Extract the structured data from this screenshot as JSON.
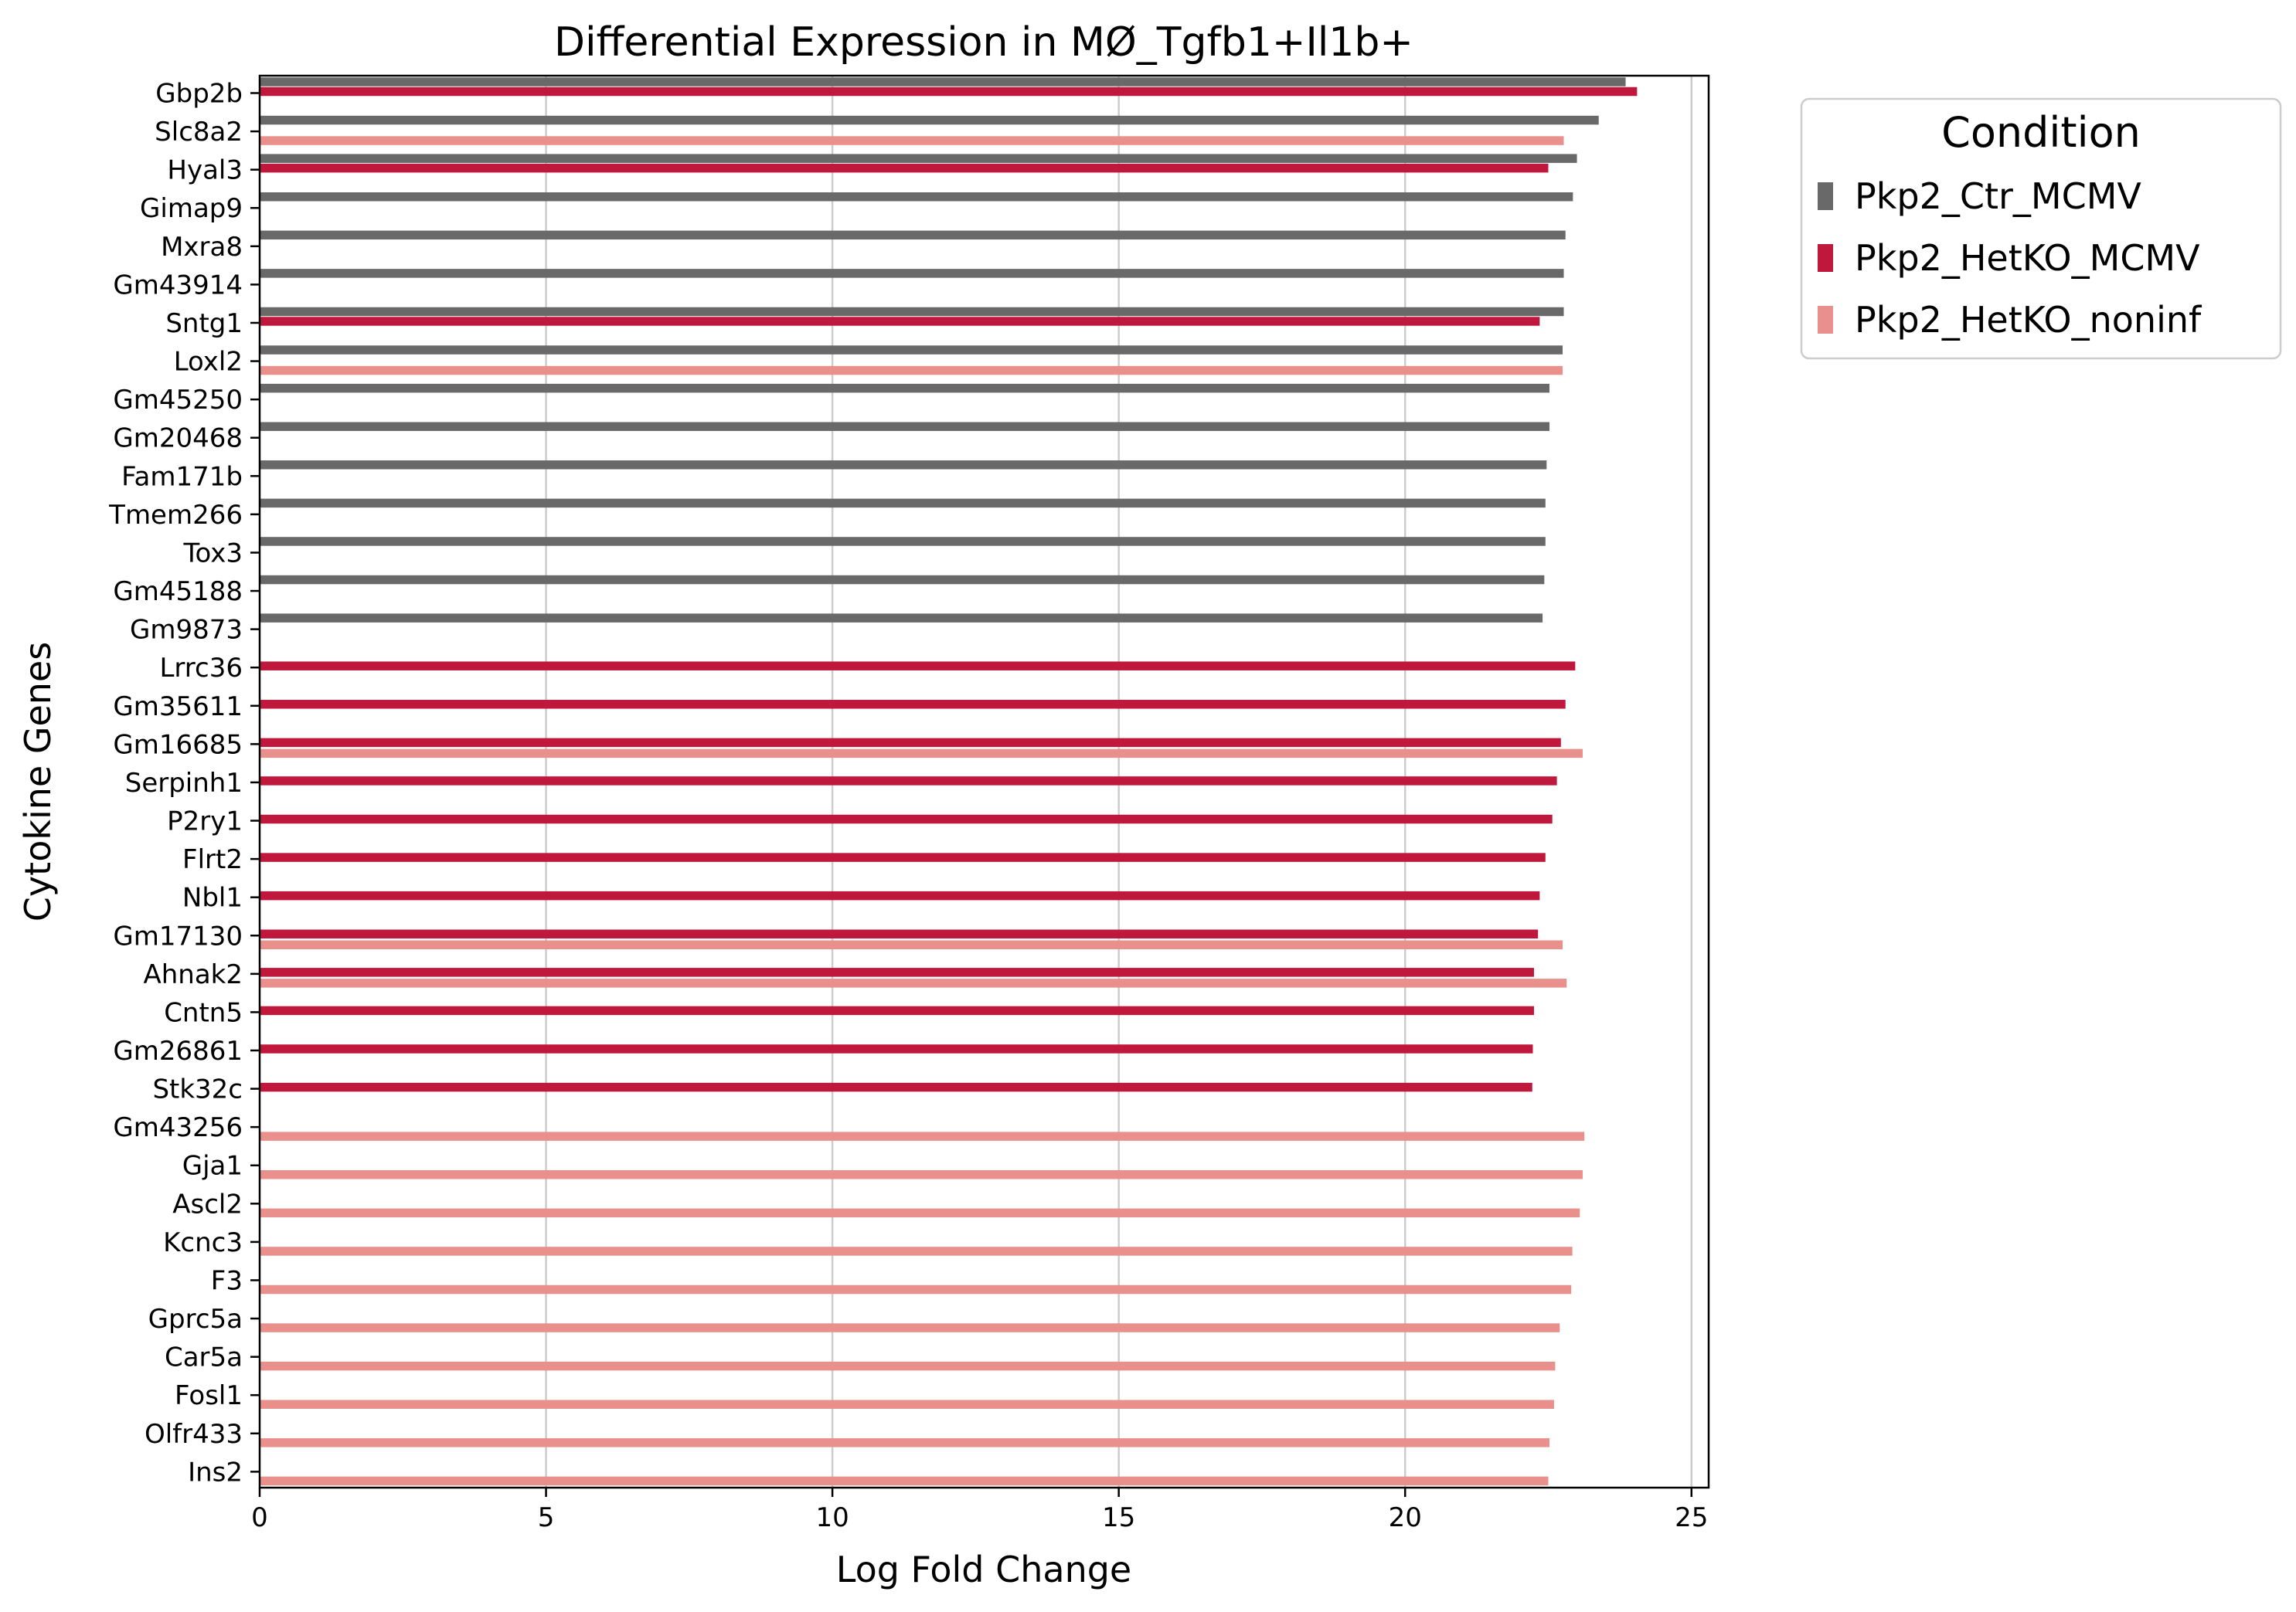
{
  "chart_data": {
    "type": "bar",
    "orientation": "horizontal",
    "title": "Differential Expression in MØ_Tgfb1+Il1b+",
    "xlabel": "Log Fold Change",
    "ylabel": "Cytokine Genes",
    "xlim": [
      0,
      25.3
    ],
    "xticks": [
      0,
      5,
      10,
      15,
      20,
      25
    ],
    "grid": "vertical",
    "legend": {
      "title": "Condition",
      "placement": "outside-top-right"
    },
    "categories": [
      "Gbp2b",
      "Slc8a2",
      "Hyal3",
      "Gimap9",
      "Mxra8",
      "Gm43914",
      "Sntg1",
      "Loxl2",
      "Gm45250",
      "Gm20468",
      "Fam171b",
      "Tmem266",
      "Tox3",
      "Gm45188",
      "Gm9873",
      "Lrrc36",
      "Gm35611",
      "Gm16685",
      "Serpinh1",
      "P2ry1",
      "Flrt2",
      "Nbl1",
      "Gm17130",
      "Ahnak2",
      "Cntn5",
      "Gm26861",
      "Stk32c",
      "Gm43256",
      "Gja1",
      "Ascl2",
      "Kcnc3",
      "F3",
      "Gprc5a",
      "Car5a",
      "Fosl1",
      "Olfr433",
      "Ins2"
    ],
    "series": [
      {
        "name": "Pkp2_Ctr_MCMV",
        "color": "#696969",
        "values": [
          23.85,
          23.38,
          23.0,
          22.93,
          22.8,
          22.77,
          22.77,
          22.75,
          22.52,
          22.52,
          22.47,
          22.45,
          22.45,
          22.43,
          22.4,
          null,
          null,
          null,
          null,
          null,
          null,
          null,
          null,
          null,
          null,
          null,
          null,
          null,
          null,
          null,
          null,
          null,
          null,
          null,
          null,
          null,
          null
        ]
      },
      {
        "name": "Pkp2_HetKO_MCMV",
        "color": "#c0183c",
        "values": [
          24.05,
          null,
          22.5,
          null,
          null,
          null,
          22.35,
          null,
          null,
          null,
          null,
          null,
          null,
          null,
          null,
          22.97,
          22.8,
          22.72,
          22.65,
          22.57,
          22.45,
          22.35,
          22.32,
          22.25,
          22.25,
          22.23,
          22.22,
          null,
          null,
          null,
          null,
          null,
          null,
          null,
          null,
          null,
          null
        ]
      },
      {
        "name": "Pkp2_HetKO_noninf",
        "color": "#e9908c",
        "values": [
          null,
          22.77,
          null,
          null,
          null,
          null,
          null,
          22.75,
          null,
          null,
          null,
          null,
          null,
          null,
          null,
          null,
          null,
          23.1,
          null,
          null,
          null,
          null,
          22.75,
          22.82,
          null,
          null,
          null,
          23.13,
          23.1,
          23.05,
          22.92,
          22.9,
          22.7,
          22.62,
          22.6,
          22.52,
          22.5
        ]
      }
    ]
  }
}
